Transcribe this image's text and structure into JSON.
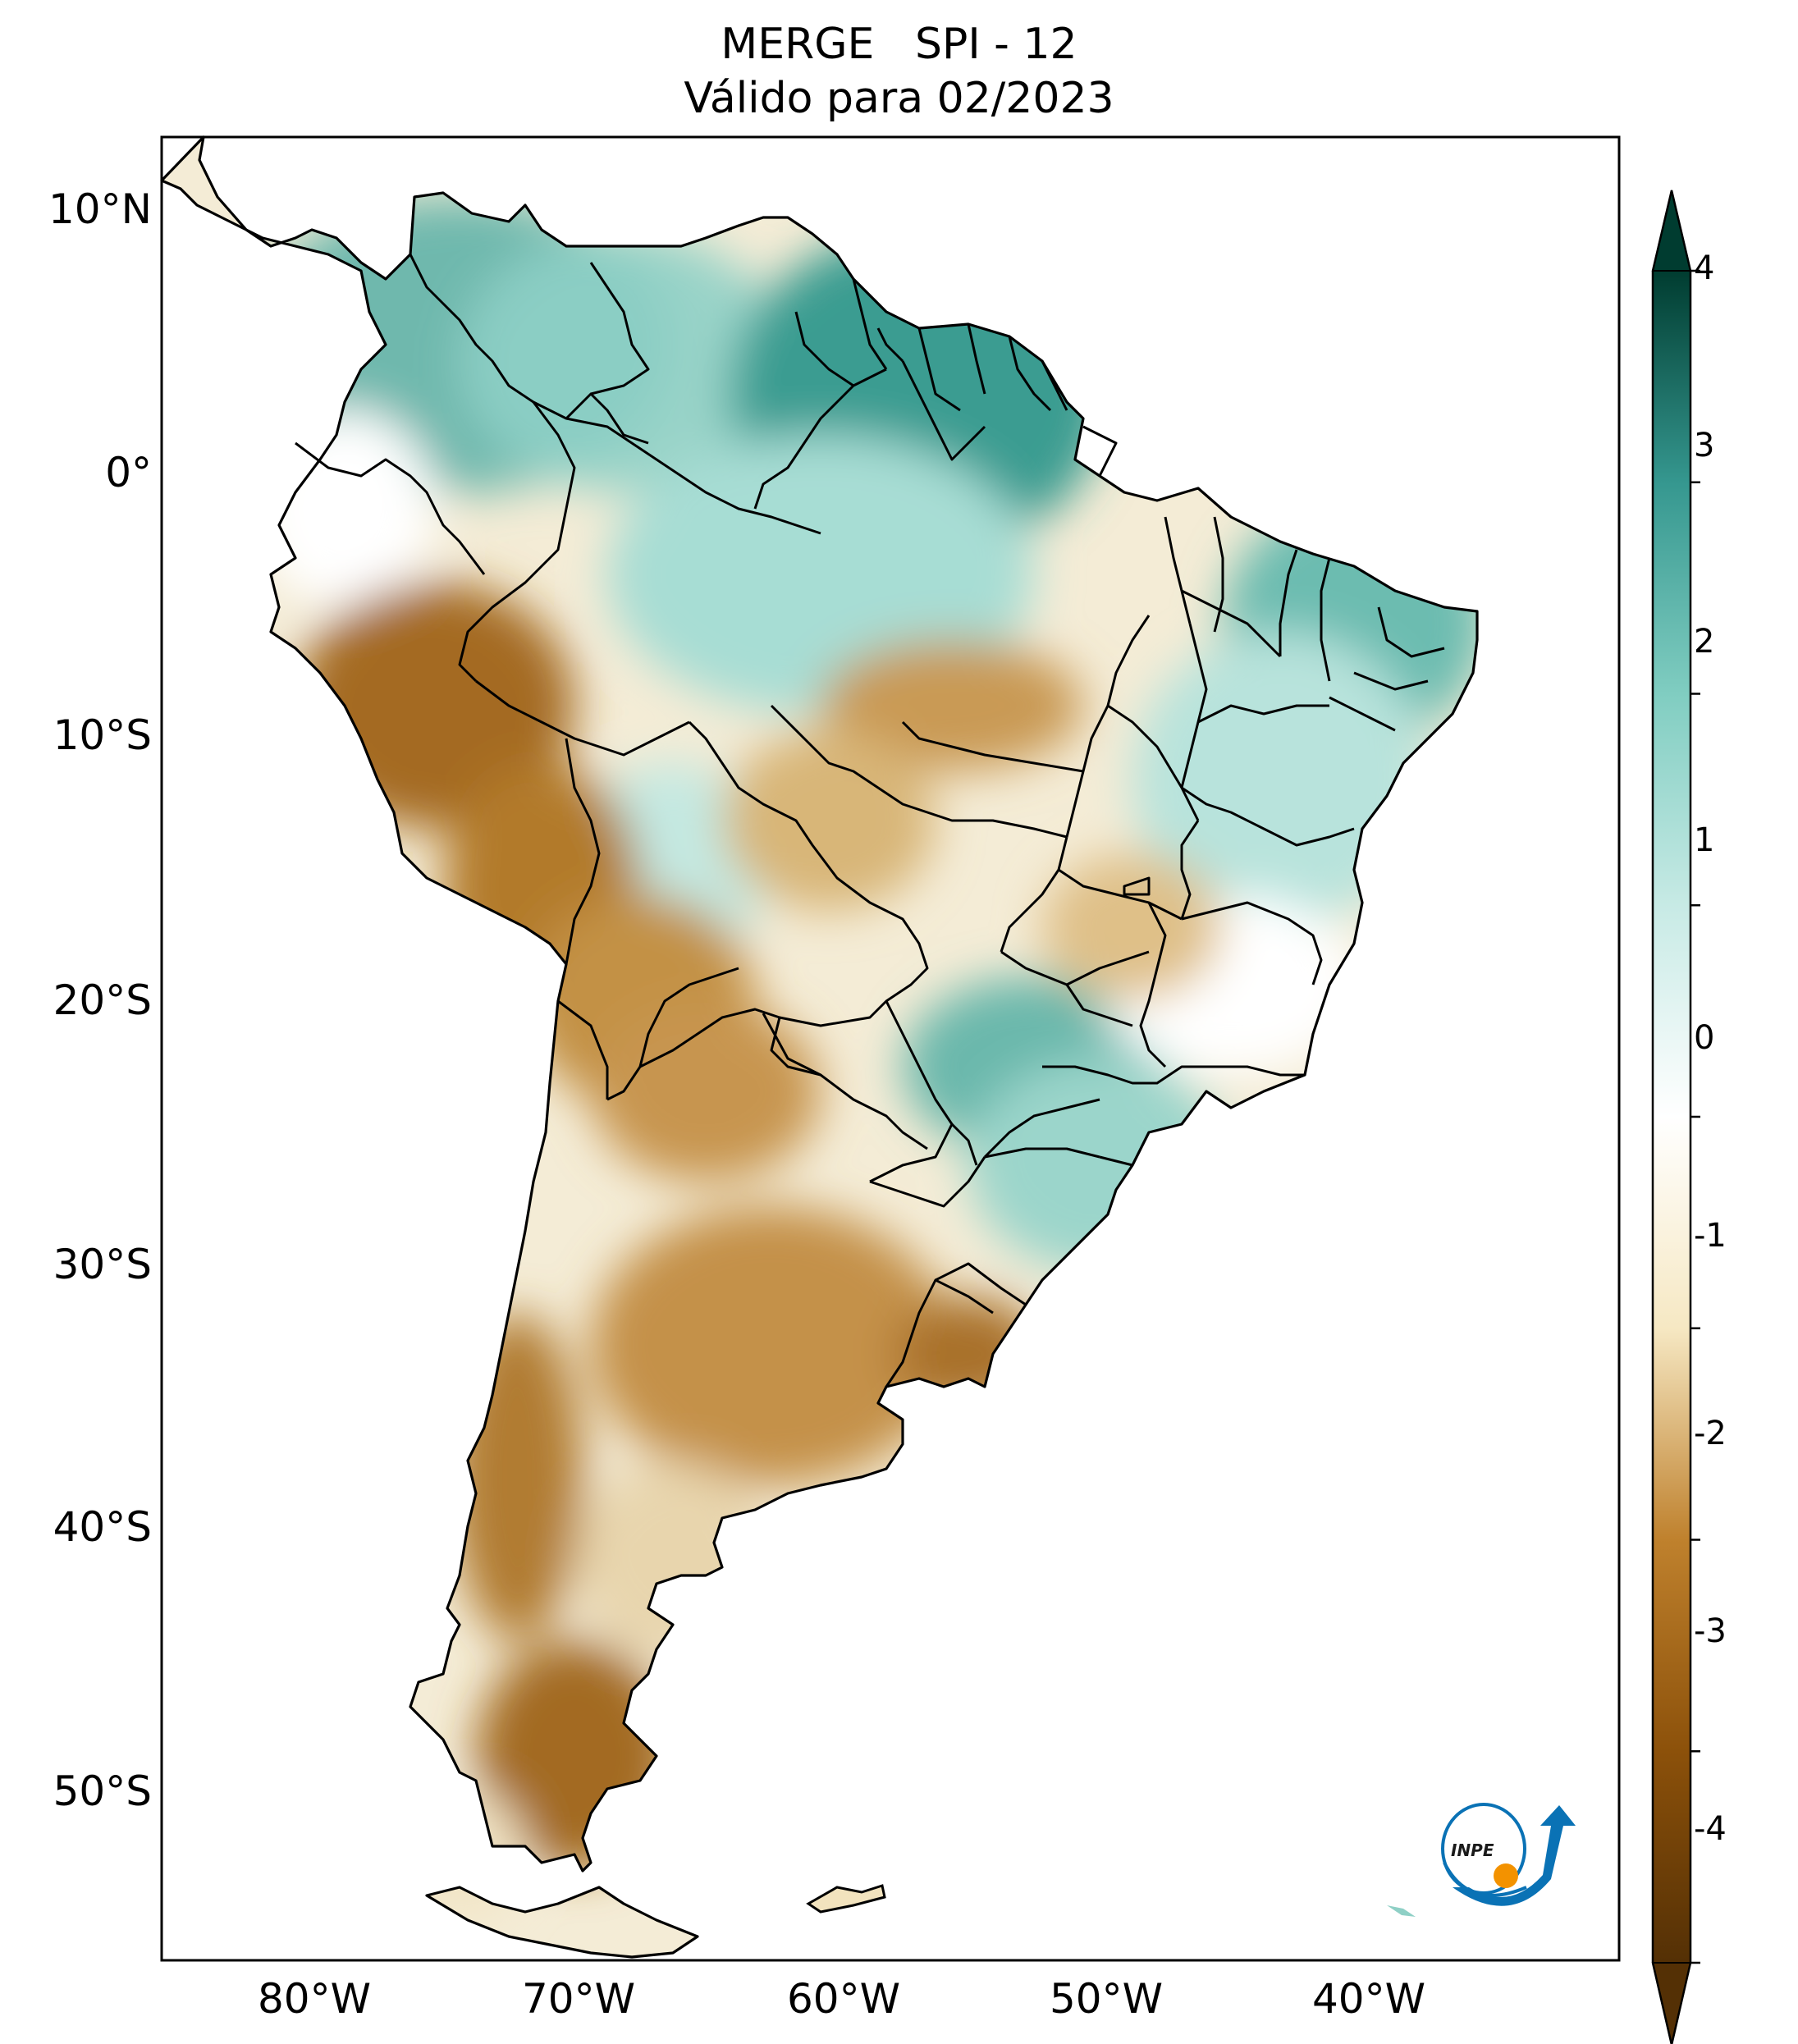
{
  "title": {
    "line1": "MERGE   SPI - 12",
    "line2": "Válido para 02/2023"
  },
  "map": {
    "extent": {
      "lon": [
        -85,
        -30
      ],
      "lat": [
        -56,
        13
      ]
    },
    "lat_ticks": [
      "10°N",
      "0°",
      "10°S",
      "20°S",
      "30°S",
      "40°S",
      "50°S"
    ],
    "lon_ticks": [
      "80°W",
      "70°W",
      "60°W",
      "50°W",
      "40°W"
    ],
    "variable": "SPI - 12",
    "colormap": "BrBG",
    "colors": {
      "dry": "#543005",
      "mid_dry": "#bf812d",
      "light_dry": "#f6e8c3",
      "neutral": "#ffffff",
      "light_wet": "#c7eae5",
      "mid_wet": "#35978f",
      "wet": "#003c30"
    },
    "regions": [
      {
        "name": "Colombia-Venezuela",
        "spi": 2.0
      },
      {
        "name": "Guianas-Amapa",
        "spi": 2.5
      },
      {
        "name": "Peru Amazon",
        "spi": -2.2
      },
      {
        "name": "Bolivia lowlands",
        "spi": -2.0
      },
      {
        "name": "Central Argentina",
        "spi": -2.3
      },
      {
        "name": "Southern Patagonia",
        "spi": -2.8
      },
      {
        "name": "Northeast Brazil",
        "spi": 1.5
      },
      {
        "name": "Mato Grosso do Sul-Parana",
        "spi": 1.5
      },
      {
        "name": "Uruguay",
        "spi": -2.2
      }
    ]
  },
  "colorbar": {
    "min": -4,
    "max": 4,
    "ticks": [
      "4",
      "3",
      "2",
      "1",
      "0",
      "-1",
      "-2",
      "-3",
      "-4"
    ],
    "extend": "both"
  },
  "logo": {
    "text": "INPE"
  }
}
